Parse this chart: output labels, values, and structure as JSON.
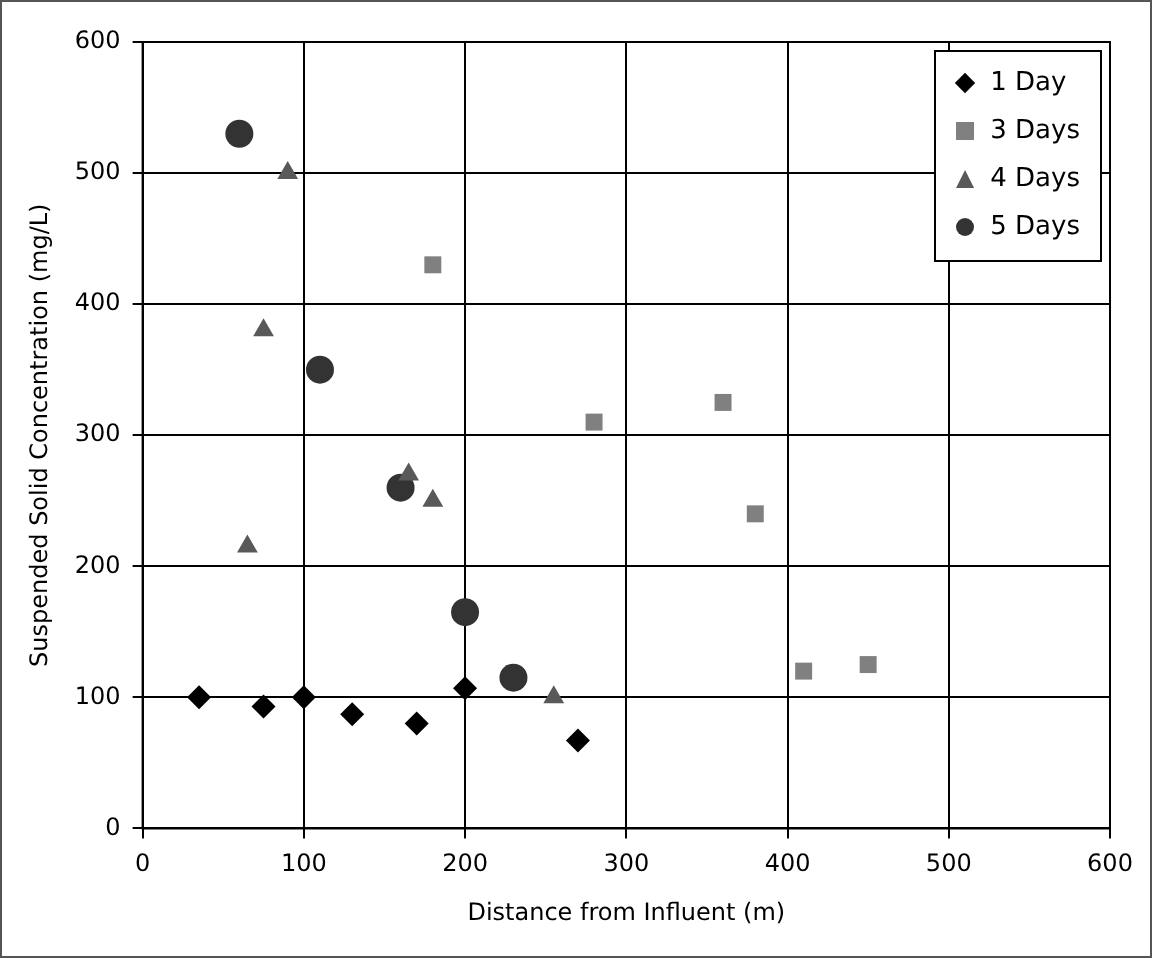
{
  "chart_data": {
    "type": "scatter",
    "xlabel": "Distance from Influent (m)",
    "ylabel": "Suspended Solid Concentration (mg/L)",
    "xlim": [
      0,
      600
    ],
    "xticks": [
      0,
      100,
      200,
      300,
      400,
      500,
      600
    ],
    "ylim": [
      0,
      600
    ],
    "yticks": [
      0,
      100,
      200,
      300,
      400,
      500,
      600
    ],
    "grid": true,
    "legend": "top right",
    "series": [
      {
        "name": "1 Day",
        "color": "#000000",
        "marker": "diamond",
        "x": [
          35,
          75,
          100,
          130,
          170,
          200,
          270
        ],
        "values": [
          100,
          93,
          100,
          87,
          80,
          107,
          67
        ]
      },
      {
        "name": "3 Days",
        "color": "#808080",
        "marker": "square",
        "x": [
          180,
          280,
          360,
          380,
          410,
          450
        ],
        "values": [
          430,
          310,
          325,
          240,
          120,
          125
        ]
      },
      {
        "name": "4 Days",
        "color": "#595959",
        "marker": "triangle",
        "x": [
          90,
          75,
          165,
          180,
          65,
          255
        ],
        "values": [
          500,
          380,
          270,
          250,
          215,
          100
        ]
      },
      {
        "name": "5 Days",
        "color": "#333333",
        "marker": "circle",
        "x": [
          60,
          110,
          160,
          200,
          230
        ],
        "values": [
          530,
          350,
          260,
          165,
          115
        ]
      }
    ]
  }
}
